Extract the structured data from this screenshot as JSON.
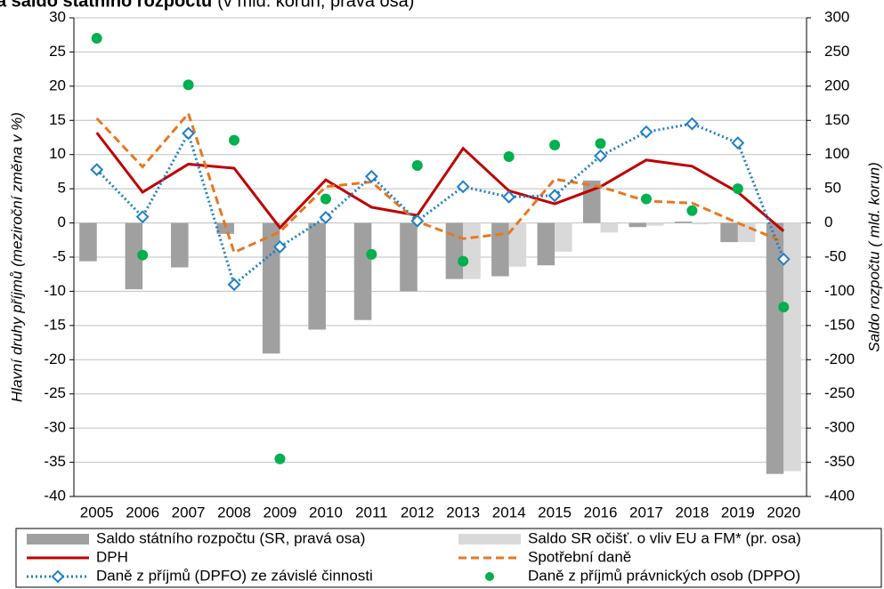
{
  "chart_data": {
    "type": "combo",
    "title": "a saldo státního rozpočtu",
    "subtitle": "(v mld. korun, pravá osa)",
    "y_label": "Hlavní druhy příjmů (meziroční změna v %)",
    "y2_label": "Saldo rozpočtu ( mld. korun)",
    "categories": [
      "2005",
      "2006",
      "2007",
      "2008",
      "2009",
      "2010",
      "2011",
      "2012",
      "2013",
      "2014",
      "2015",
      "2016",
      "2017",
      "2018",
      "2019",
      "2020"
    ],
    "ylim": [
      -40,
      30
    ],
    "yticks": [
      -40,
      -35,
      -30,
      -25,
      -20,
      -15,
      -10,
      -5,
      0,
      5,
      10,
      15,
      20,
      25,
      30
    ],
    "y2lim": [
      -400,
      300
    ],
    "y2ticks": [
      -400,
      -350,
      -300,
      -250,
      -200,
      -150,
      -100,
      -50,
      0,
      50,
      100,
      150,
      200,
      250,
      300
    ],
    "grid": true,
    "legend": "bottom",
    "series": [
      {
        "name": "Saldo státního rozpočtu (SR, pravá osa)",
        "type": "bar",
        "axis": "y2",
        "color": "#a0a0a0",
        "values": [
          -56,
          -97,
          -65,
          -16,
          -191,
          -156,
          -142,
          -100,
          -82,
          -78,
          -62,
          62,
          -6,
          2,
          -28,
          -367
        ]
      },
      {
        "name": "Saldo SR očišť. o vliv EU a FM* (pr. osa)",
        "type": "bar",
        "axis": "y2",
        "color": "#d9d9d9",
        "values": [
          null,
          null,
          null,
          null,
          null,
          null,
          null,
          null,
          -82,
          -64,
          -42,
          -14,
          -4,
          -2,
          -28,
          -363
        ]
      },
      {
        "name": "DPH",
        "type": "line",
        "color": "#c00000",
        "dash": "solid",
        "values": [
          13.2,
          4.5,
          8.6,
          8,
          -0.7,
          6.3,
          2.3,
          1.1,
          10.9,
          4.7,
          2.8,
          5.3,
          9.2,
          8.3,
          4.5,
          -1.2
        ]
      },
      {
        "name": "Spotřební daně",
        "type": "line",
        "color": "#e87722",
        "dash": "dashed",
        "values": [
          15.3,
          8.2,
          16,
          -4.3,
          -1.3,
          5.3,
          6,
          0.2,
          -2.3,
          -1.5,
          6.4,
          5.3,
          3.2,
          2.9,
          0,
          -2.8
        ]
      },
      {
        "name": "Daně z příjmů (DPFO) ze závislé činnosti",
        "type": "line",
        "color": "#1f7fc4",
        "dash": "dotted",
        "marker": "diamond",
        "values": [
          7.8,
          0.9,
          13.1,
          -9,
          -3.5,
          0.8,
          6.8,
          0.3,
          5.3,
          3.8,
          4,
          9.8,
          13.3,
          14.5,
          11.7,
          -5.3
        ]
      },
      {
        "name": "Daně z příjmů právnických osob (DPPO)",
        "type": "scatter",
        "color": "#00b050",
        "values": [
          27,
          -4.7,
          20.2,
          12.1,
          -34.5,
          3.5,
          -4.6,
          8.4,
          -5.6,
          9.7,
          11.4,
          11.6,
          3.5,
          1.8,
          5,
          -12.3
        ]
      }
    ]
  }
}
